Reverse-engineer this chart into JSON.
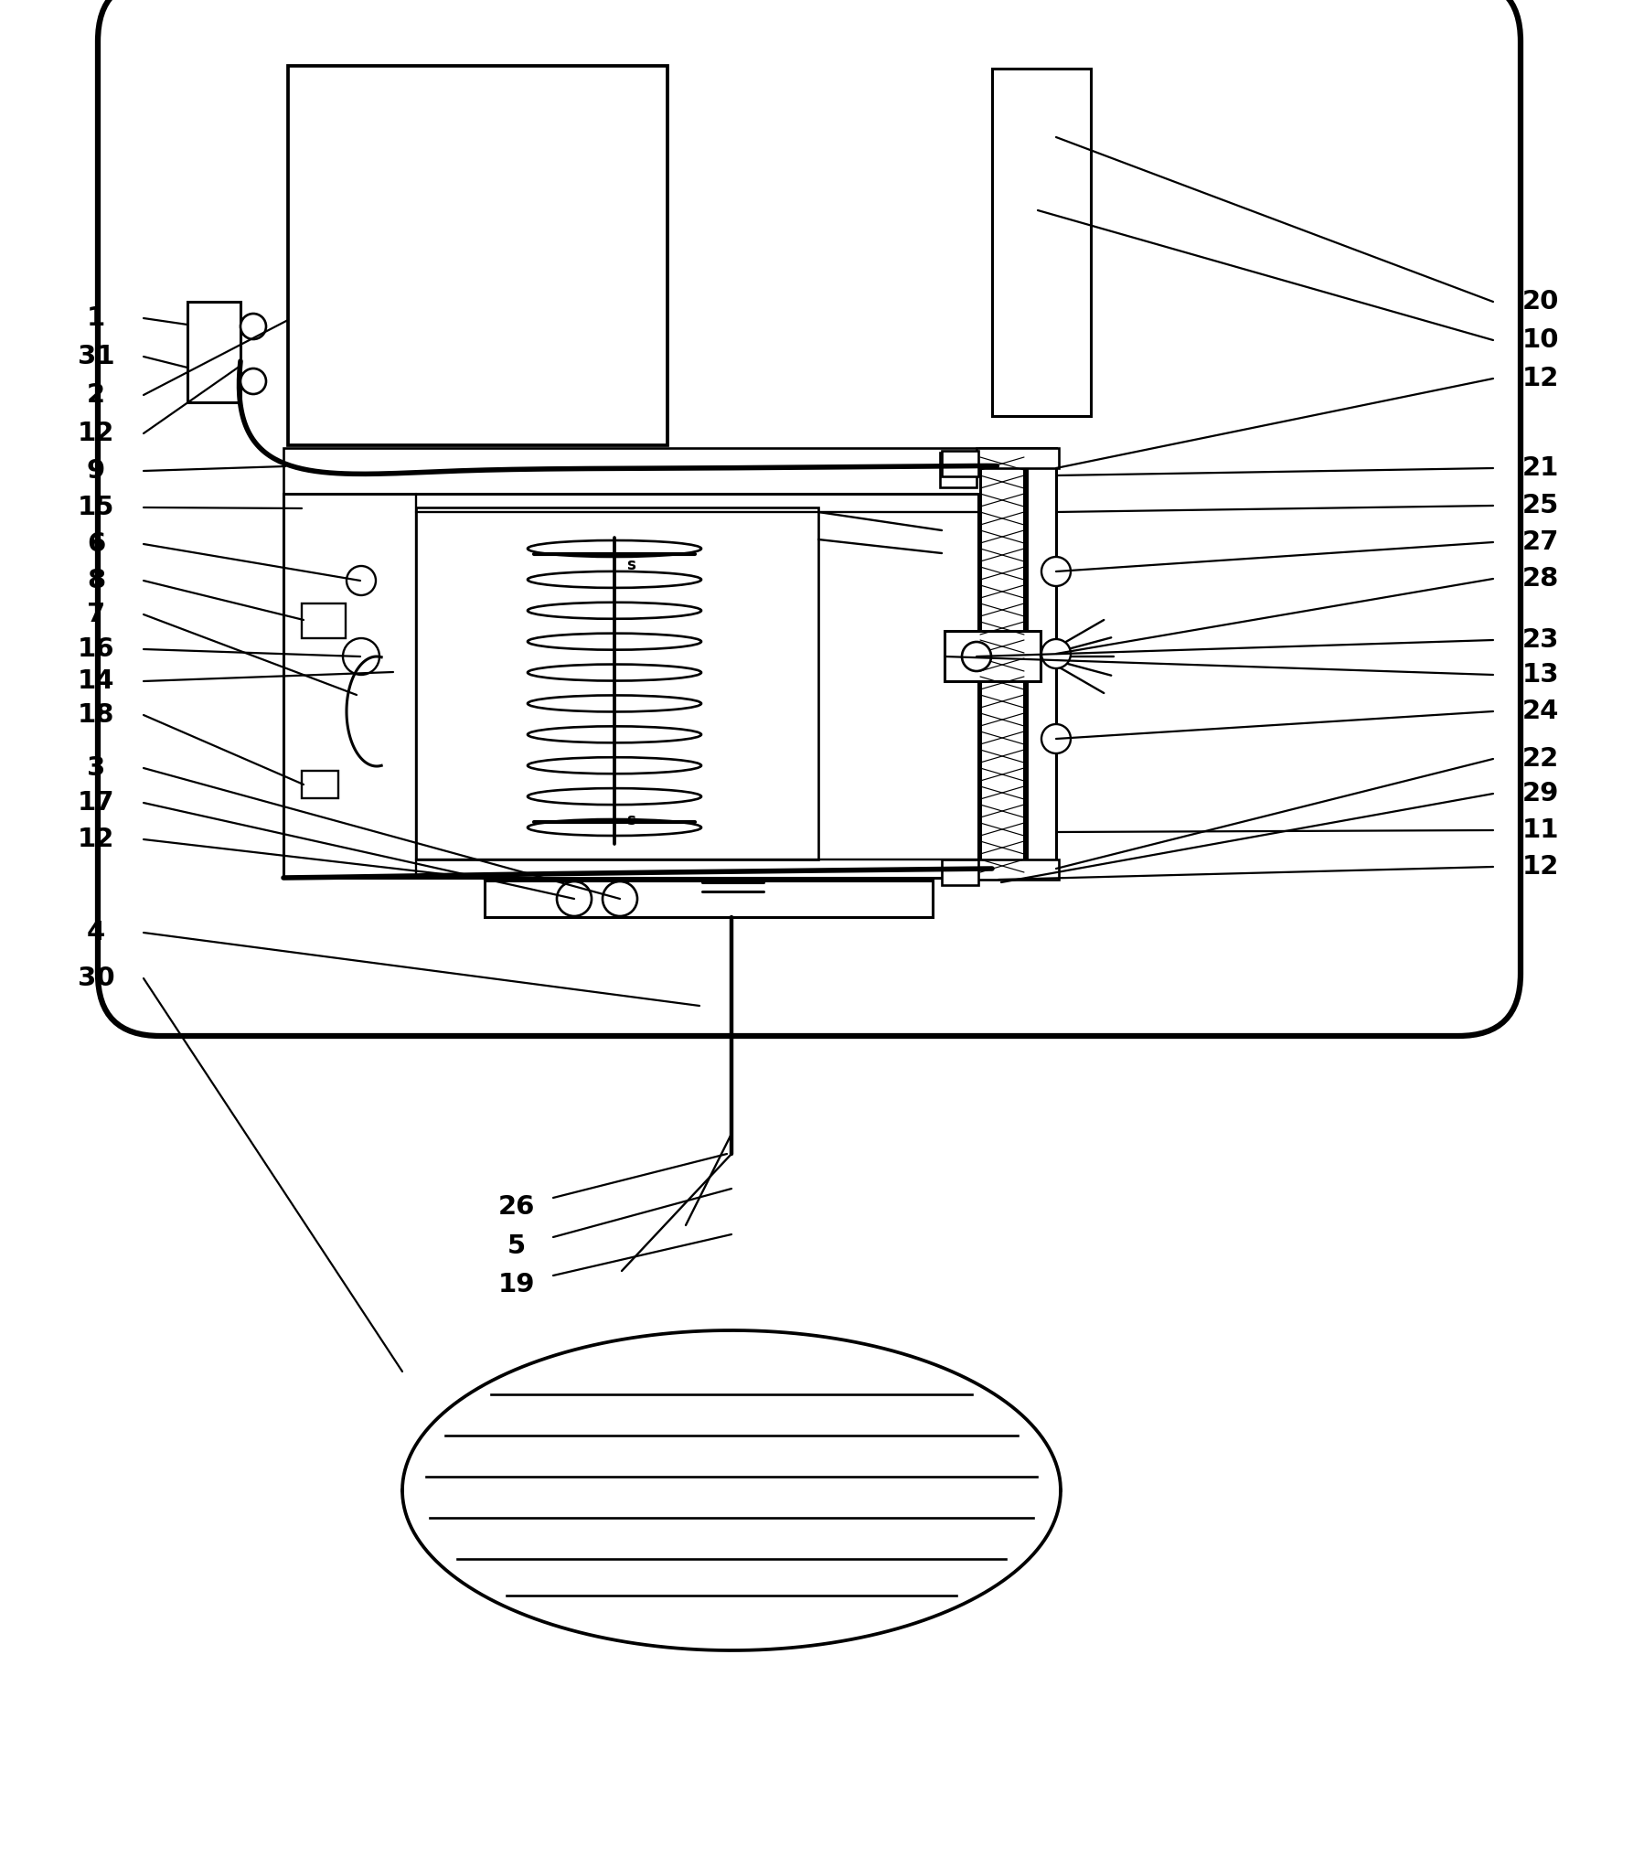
{
  "bg": "#ffffff",
  "lc": "#000000",
  "lw": 2.2,
  "tlw": 4.0,
  "fw": 17.98,
  "fh": 20.43,
  "dpi": 100
}
